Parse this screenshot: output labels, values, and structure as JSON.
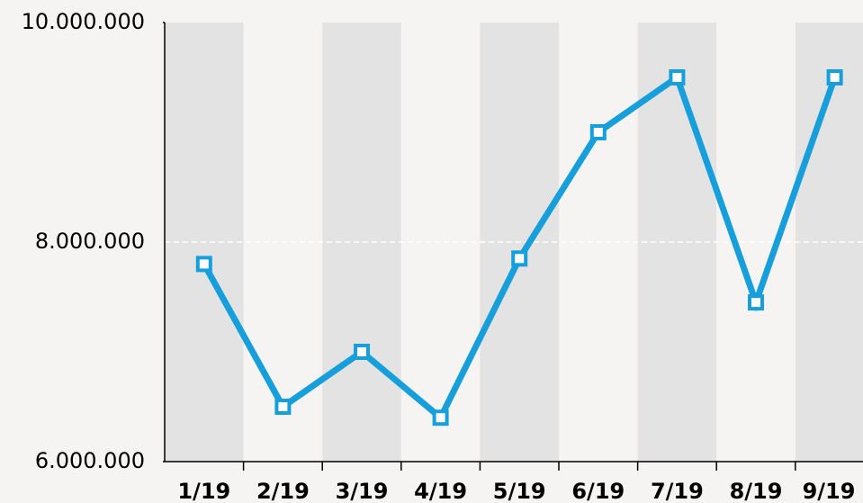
{
  "chart_data": {
    "type": "line",
    "categories": [
      "1/19",
      "2/19",
      "3/19",
      "4/19",
      "5/19",
      "6/19",
      "7/19",
      "8/19",
      "9/19"
    ],
    "series": [
      {
        "color": "#169fdb",
        "values": [
          7800000,
          6500000,
          7000000,
          6400000,
          7850000,
          9000000,
          9500000,
          7450000,
          9500000
        ]
      }
    ],
    "ylim": [
      6000000,
      10000000
    ],
    "yticks": [
      {
        "value": 6000000,
        "label": "6.000.000"
      },
      {
        "value": 8000000,
        "label": "8.000.000"
      },
      {
        "value": 10000000,
        "label": "10.000.000"
      }
    ],
    "grid": true
  }
}
